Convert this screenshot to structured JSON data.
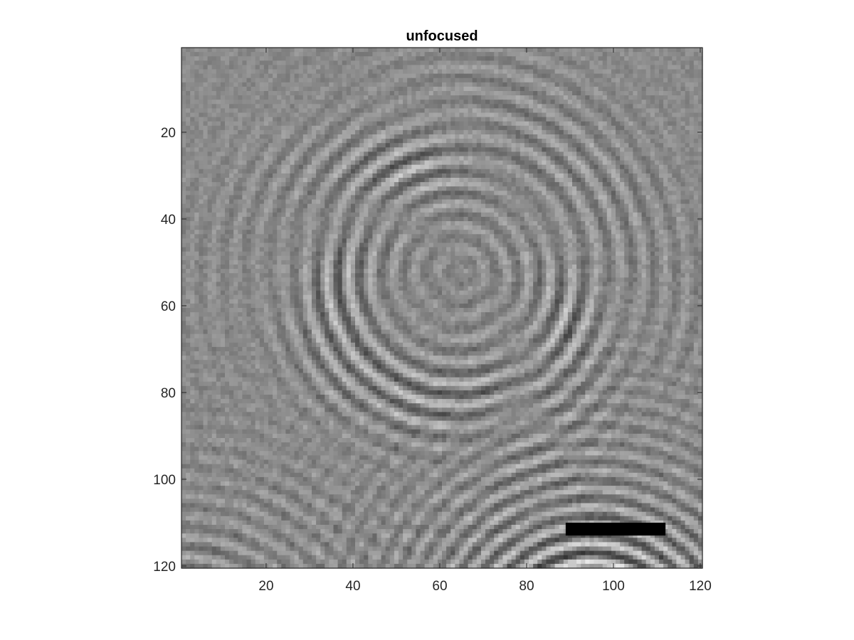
{
  "chart_data": {
    "type": "heatmap",
    "title": "unfocused",
    "xlabel": "",
    "ylabel": "",
    "colormap": "gray",
    "size": [
      120,
      120
    ],
    "xlim": [
      0.5,
      120.5
    ],
    "ylim": [
      0.5,
      120.5
    ],
    "y_reversed": true,
    "xticks": [
      20,
      40,
      60,
      80,
      100,
      120
    ],
    "yticks": [
      20,
      40,
      60,
      80,
      100,
      120
    ],
    "grid": false,
    "wave_sources": [
      {
        "x": 65,
        "y": 52,
        "ring_spacing": 5.2,
        "amplitude": 0.45
      },
      {
        "x": 62,
        "y": 55,
        "ring_spacing": 4.6,
        "amplitude": 0.22
      },
      {
        "x": 95,
        "y": 140,
        "ring_spacing": 4.2,
        "amplitude": 0.9
      },
      {
        "x": 0,
        "y": 150,
        "ring_spacing": 4.6,
        "amplitude": 0.4
      }
    ],
    "overlay_bar": {
      "x_start": 89,
      "x_end": 112,
      "y": 111.5,
      "color": "#000000"
    }
  }
}
